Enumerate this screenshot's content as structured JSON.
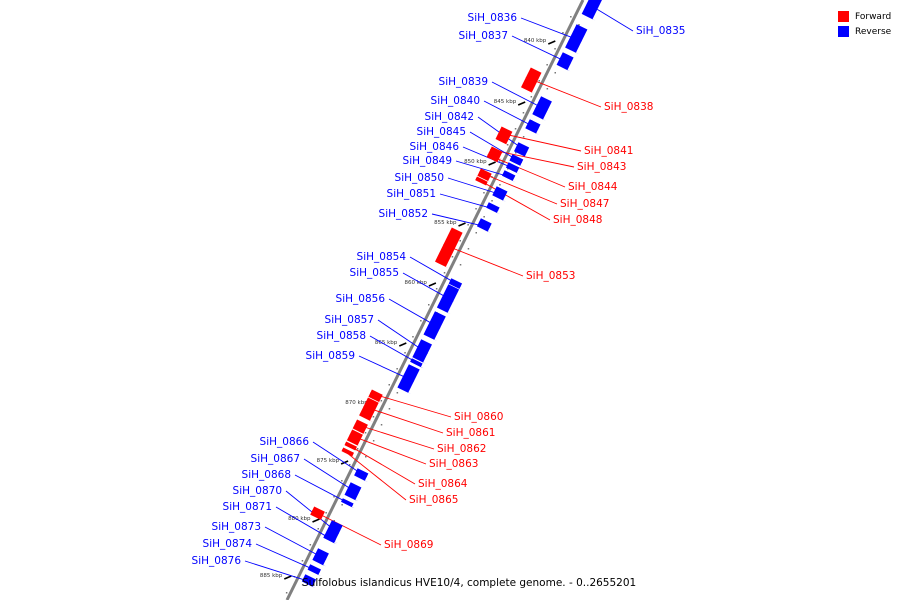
{
  "colors": {
    "forward": "#ff0000",
    "reverse": "#0000ff",
    "backbone": "#808080"
  },
  "legend": [
    {
      "label": "Forward",
      "color": "#ff0000"
    },
    {
      "label": "Reverse",
      "color": "#0000ff"
    }
  ],
  "caption": "Sulfolobus islandicus HVE10/4, complete genome. - 0..2655201",
  "scale_marks": [
    "840 kbp",
    "845 kbp",
    "850 kbp",
    "855 kbp",
    "860 kbp",
    "865 kbp",
    "870 kbp",
    "875 kbp",
    "880 kbp",
    "885 kbp"
  ],
  "genes": [
    {
      "name": "SiH_0835",
      "strand": "reverse"
    },
    {
      "name": "SiH_0836",
      "strand": "reverse"
    },
    {
      "name": "SiH_0837",
      "strand": "reverse"
    },
    {
      "name": "SiH_0838",
      "strand": "forward"
    },
    {
      "name": "SiH_0839",
      "strand": "reverse"
    },
    {
      "name": "SiH_0840",
      "strand": "reverse"
    },
    {
      "name": "SiH_0841",
      "strand": "forward"
    },
    {
      "name": "SiH_0842",
      "strand": "reverse"
    },
    {
      "name": "SiH_0843",
      "strand": "forward"
    },
    {
      "name": "SiH_0844",
      "strand": "forward"
    },
    {
      "name": "SiH_0845",
      "strand": "reverse"
    },
    {
      "name": "SiH_0846",
      "strand": "reverse"
    },
    {
      "name": "SiH_0847",
      "strand": "forward"
    },
    {
      "name": "SiH_0848",
      "strand": "forward"
    },
    {
      "name": "SiH_0849",
      "strand": "reverse"
    },
    {
      "name": "SiH_0850",
      "strand": "reverse"
    },
    {
      "name": "SiH_0851",
      "strand": "reverse"
    },
    {
      "name": "SiH_0852",
      "strand": "reverse"
    },
    {
      "name": "SiH_0853",
      "strand": "forward"
    },
    {
      "name": "SiH_0854",
      "strand": "reverse"
    },
    {
      "name": "SiH_0855",
      "strand": "reverse"
    },
    {
      "name": "SiH_0856",
      "strand": "reverse"
    },
    {
      "name": "SiH_0857",
      "strand": "reverse"
    },
    {
      "name": "SiH_0858",
      "strand": "reverse"
    },
    {
      "name": "SiH_0859",
      "strand": "reverse"
    },
    {
      "name": "SiH_0860",
      "strand": "forward"
    },
    {
      "name": "SiH_0861",
      "strand": "forward"
    },
    {
      "name": "SiH_0862",
      "strand": "forward"
    },
    {
      "name": "SiH_0863",
      "strand": "forward"
    },
    {
      "name": "SiH_0864",
      "strand": "forward"
    },
    {
      "name": "SiH_0865",
      "strand": "forward"
    },
    {
      "name": "SiH_0866",
      "strand": "reverse"
    },
    {
      "name": "SiH_0867",
      "strand": "reverse"
    },
    {
      "name": "SiH_0868",
      "strand": "reverse"
    },
    {
      "name": "SiH_0869",
      "strand": "forward"
    },
    {
      "name": "SiH_0870",
      "strand": "reverse"
    },
    {
      "name": "SiH_0871",
      "strand": "reverse"
    },
    {
      "name": "SiH_0873",
      "strand": "reverse"
    },
    {
      "name": "SiH_0874",
      "strand": "reverse"
    },
    {
      "name": "SiH_0876",
      "strand": "reverse"
    }
  ]
}
